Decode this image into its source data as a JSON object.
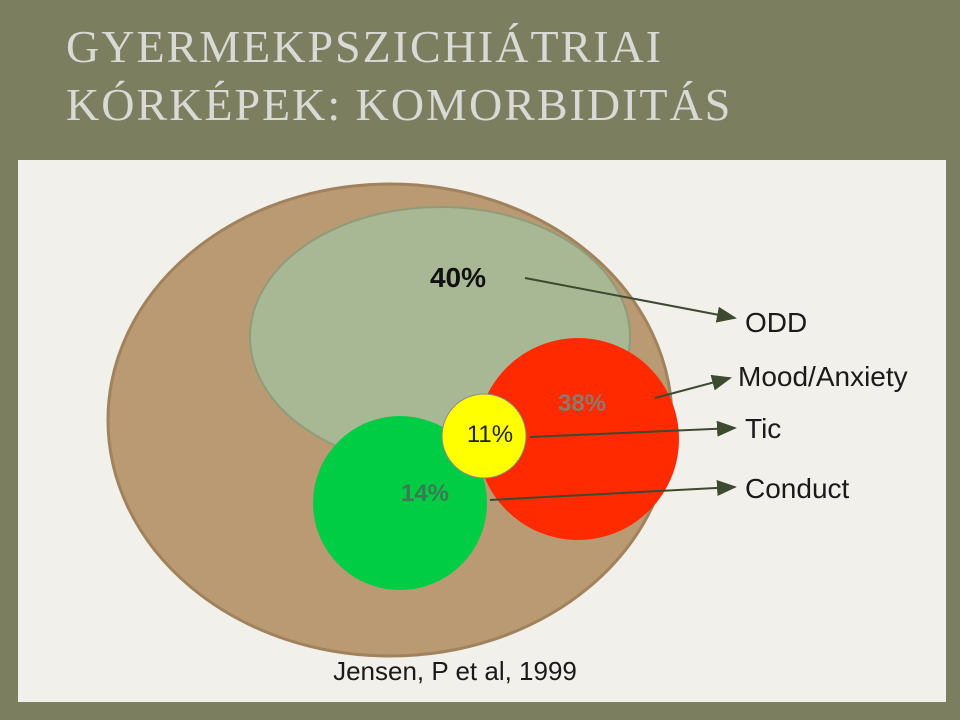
{
  "header": {
    "title_line1": "GYERMEKPSZICHIÁTRIAI",
    "title_line2": "KÓRKÉPEK: KOMORBIDITÁS"
  },
  "nodes": [
    {
      "label": "40%",
      "legend": "ODD"
    },
    {
      "label": "38%",
      "legend": "Mood/Anxiety"
    },
    {
      "label": "11%",
      "legend": "Tic"
    },
    {
      "label": "14%",
      "legend": "Conduct"
    }
  ],
  "caption": "Jensen, P et al, 1999"
}
